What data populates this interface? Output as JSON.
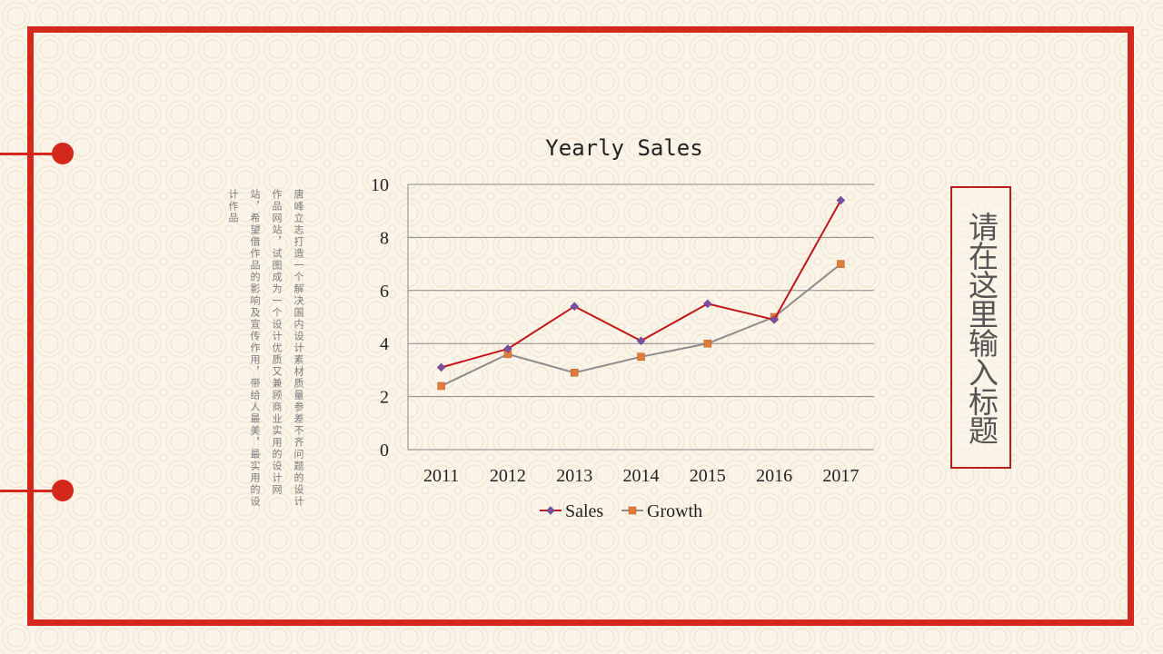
{
  "body_text": "唐峰立志打造一个解决国内设计素材质量参差不齐问题的设计作品网站，试图成为一个设计优质又兼顾商业实用的设计网站，希望借作品的影响及宣传作用，带给人最美，最实用的设计作品",
  "title": "请在这里输入标题",
  "colors": {
    "accent": "#d5281d",
    "sales_line": "#c0171b",
    "sales_marker": "#7b4fa0",
    "growth_line": "#8c8c8c",
    "growth_marker": "#e07b39"
  },
  "chart_data": {
    "type": "line",
    "title": "Yearly Sales",
    "categories": [
      "2011",
      "2012",
      "2013",
      "2014",
      "2015",
      "2016",
      "2017"
    ],
    "series": [
      {
        "name": "Sales",
        "values": [
          3.1,
          3.8,
          5.4,
          4.1,
          5.5,
          4.9,
          9.4
        ]
      },
      {
        "name": "Growth",
        "values": [
          2.4,
          3.6,
          2.9,
          3.5,
          4.0,
          5.0,
          7.0
        ]
      }
    ],
    "ylim": [
      0,
      10
    ],
    "yticks": [
      "0",
      "2",
      "4",
      "6",
      "8",
      "10"
    ],
    "grid": true,
    "legend": "bottom",
    "xlabel": "",
    "ylabel": ""
  }
}
